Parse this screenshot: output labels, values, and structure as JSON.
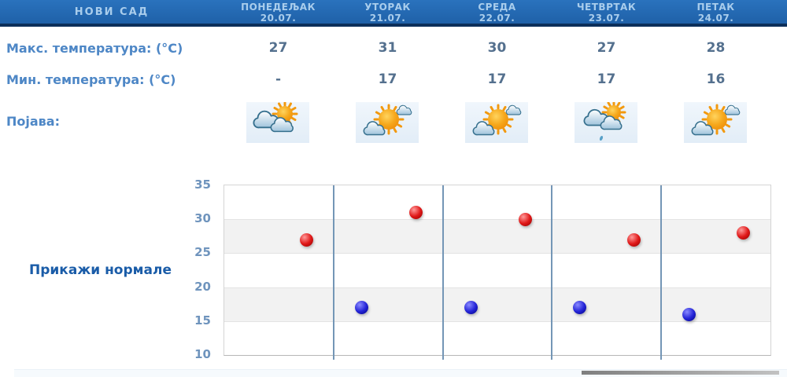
{
  "header": {
    "location": "НОВИ САД"
  },
  "days": [
    {
      "name": "ПОНЕДЕЉАК",
      "date": "20.07.",
      "max": "27",
      "min": "-",
      "icon": "mostly-cloudy"
    },
    {
      "name": "УТОРАК",
      "date": "21.07.",
      "max": "31",
      "min": "17",
      "icon": "partly-sunny"
    },
    {
      "name": "СРЕДА",
      "date": "22.07.",
      "max": "30",
      "min": "17",
      "icon": "partly-sunny"
    },
    {
      "name": "ЧЕТВРТАК",
      "date": "23.07.",
      "max": "27",
      "min": "17",
      "icon": "light-rain"
    },
    {
      "name": "ПЕТАК",
      "date": "24.07.",
      "max": "28",
      "min": "16",
      "icon": "partly-sunny"
    }
  ],
  "rows": {
    "max_label": "Макс. температура: (°C)",
    "min_label": "Мин. температура: (°C)",
    "phenomenon_label": "Појава:"
  },
  "controls": {
    "show_normals": "Прикажи нормале"
  },
  "colors": {
    "header_bg": "#2266b0",
    "header_border": "#0c2f5a",
    "header_text": "#a9cdec",
    "label_blue": "#4e87c6",
    "value_slate": "#54708e",
    "link_blue": "#1a5ca8",
    "axis_label": "#6f94bd",
    "divider_blue": "#7496b6",
    "band_gray": "#f2f2f2",
    "max_dot": "#cc1111",
    "min_dot": "#1818cc"
  },
  "chart_data": {
    "type": "scatter",
    "categories": [
      "ПОНЕДЕЉАК 20.07.",
      "УТОРАК 21.07.",
      "СРЕДА 22.07.",
      "ЧЕТВРТАК 23.07.",
      "ПЕТАК 24.07."
    ],
    "series": [
      {
        "name": "Макс. температура (°C)",
        "color": "#cc1111",
        "values": [
          27,
          31,
          30,
          27,
          28
        ]
      },
      {
        "name": "Мин. температура (°C)",
        "color": "#1818cc",
        "values": [
          null,
          17,
          17,
          17,
          16
        ]
      }
    ],
    "ylim": [
      10,
      35
    ],
    "yticks": [
      35,
      30,
      25,
      20,
      15,
      10
    ],
    "grid": "horizontal-bands-5deg",
    "x_dividers": true,
    "legend": "none"
  }
}
